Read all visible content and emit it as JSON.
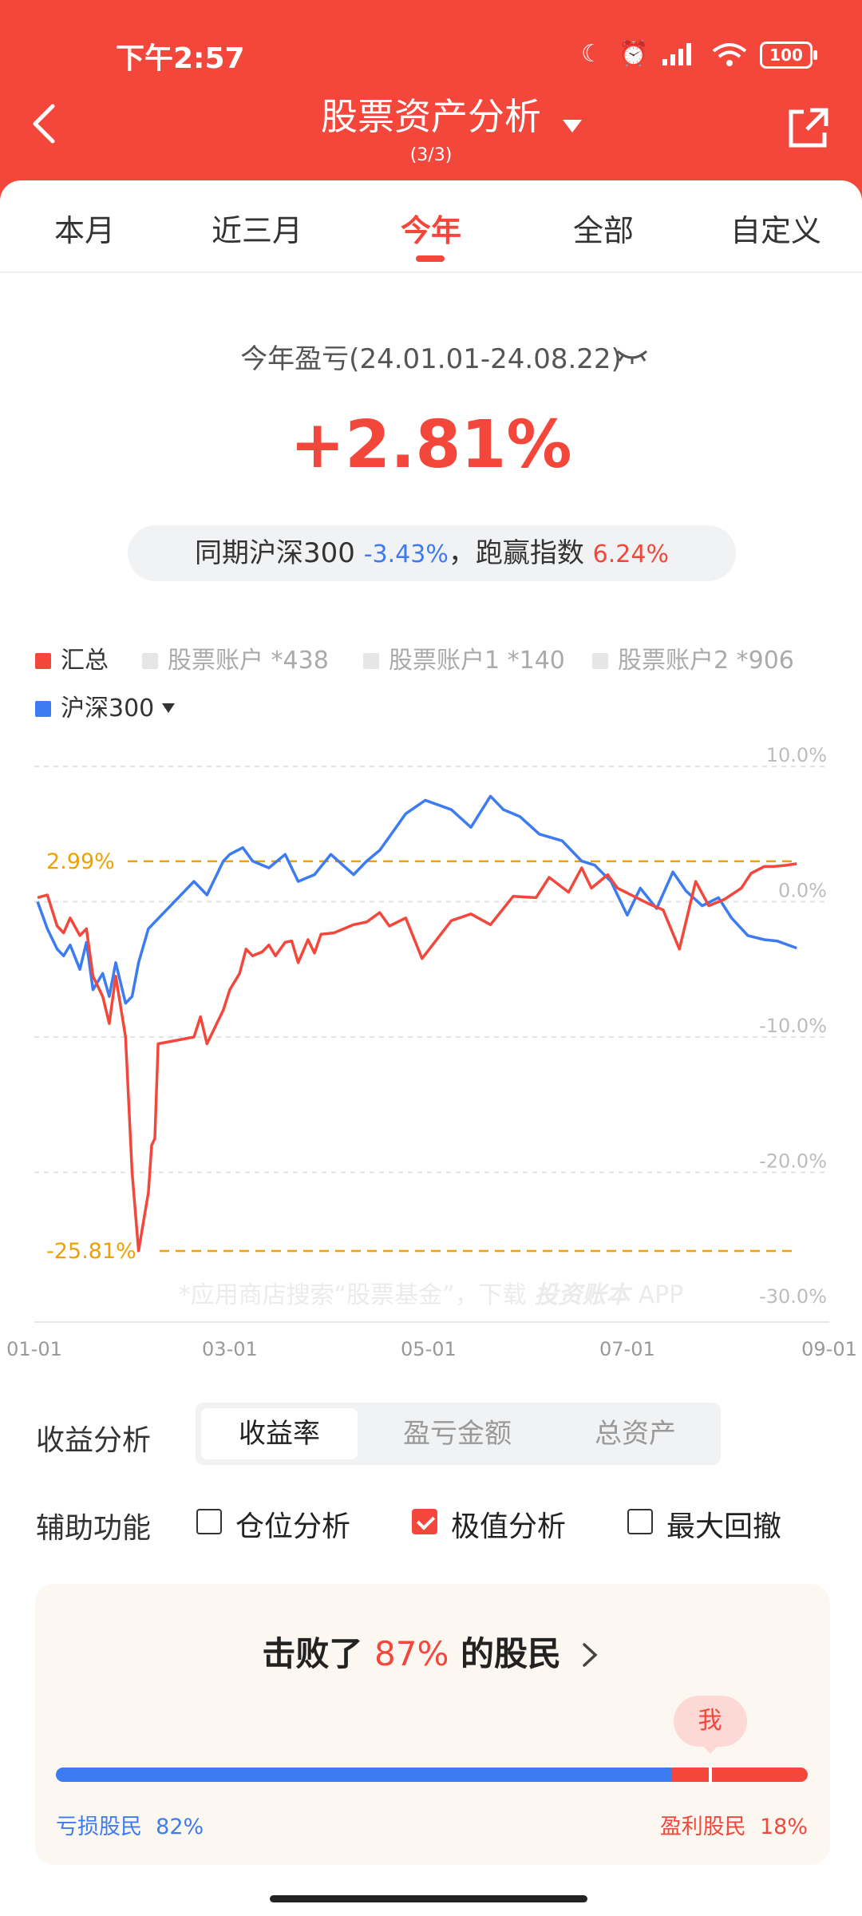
{
  "status_bar": {
    "time": "下午2:57",
    "battery": "100"
  },
  "header": {
    "title": "股票资产分析",
    "subtitle": "(3/3)"
  },
  "tabs": [
    {
      "label": "本月"
    },
    {
      "label": "近三月"
    },
    {
      "label": "今年",
      "active": true
    },
    {
      "label": "全部"
    },
    {
      "label": "自定义"
    }
  ],
  "summary": {
    "label": "今年盈亏(24.01.01-24.08.22)",
    "return_value": "+2.81%",
    "compare_prefix": "同期沪深300",
    "index_return": "-3.43%",
    "compare_mid": "，跑赢指数",
    "excess_return": "6.24%"
  },
  "legend": {
    "items": [
      "汇总",
      "股票账户 *438",
      "股票账户1 *140",
      "股票账户2 *906"
    ],
    "index_label": "沪深300"
  },
  "colors": {
    "accent": "#f4473c",
    "index_blue": "#3d7bf3",
    "marker_orange": "#f0a000"
  },
  "chart_data": {
    "type": "line",
    "x_ticks": [
      "01-01",
      "03-01",
      "05-01",
      "07-01",
      "09-01"
    ],
    "y_ticks": [
      "10.0%",
      "0.0%",
      "-10.0%",
      "-20.0%",
      "-30.0%"
    ],
    "ylim": [
      -30,
      10
    ],
    "max_marker": "2.99%",
    "min_marker": "-25.81%",
    "watermark": "*应用商店搜索“股票基金”，下载",
    "watermark_brand": "投资账本",
    "watermark_suffix": "APP",
    "series": [
      {
        "name": "汇总",
        "color": "#f4473c",
        "x": [
          "2024-01-02",
          "2024-01-05",
          "2024-01-08",
          "2024-01-10",
          "2024-01-12",
          "2024-01-15",
          "2024-01-17",
          "2024-01-19",
          "2024-01-22",
          "2024-01-24",
          "2024-01-26",
          "2024-01-29",
          "2024-01-31",
          "2024-02-02",
          "2024-02-05",
          "2024-02-06",
          "2024-02-07",
          "2024-02-08",
          "2024-02-19",
          "2024-02-21",
          "2024-02-23",
          "2024-02-26",
          "2024-02-28",
          "2024-03-01",
          "2024-03-04",
          "2024-03-06",
          "2024-03-08",
          "2024-03-11",
          "2024-03-13",
          "2024-03-15",
          "2024-03-18",
          "2024-03-20",
          "2024-03-22",
          "2024-03-25",
          "2024-03-27",
          "2024-03-29",
          "2024-04-02",
          "2024-04-08",
          "2024-04-12",
          "2024-04-16",
          "2024-04-19",
          "2024-04-24",
          "2024-04-29",
          "2024-05-08",
          "2024-05-14",
          "2024-05-20",
          "2024-05-27",
          "2024-06-03",
          "2024-06-07",
          "2024-06-13",
          "2024-06-17",
          "2024-06-20",
          "2024-06-25",
          "2024-06-28",
          "2024-07-03",
          "2024-07-08",
          "2024-07-12",
          "2024-07-17",
          "2024-07-22",
          "2024-07-26",
          "2024-07-31",
          "2024-08-05",
          "2024-08-08",
          "2024-08-12",
          "2024-08-15",
          "2024-08-19",
          "2024-08-22"
        ],
        "values": [
          0.3,
          0.5,
          -1.8,
          -2.3,
          -1.2,
          -2.5,
          -2.0,
          -5.5,
          -7.0,
          -9.0,
          -5.5,
          -10.0,
          -20.0,
          -25.8,
          -21.5,
          -18.0,
          -17.5,
          -10.5,
          -10.0,
          -8.5,
          -10.5,
          -9.0,
          -8.0,
          -6.5,
          -5.3,
          -3.5,
          -4.0,
          -3.7,
          -3.2,
          -4.0,
          -3.0,
          -2.9,
          -4.5,
          -2.8,
          -3.8,
          -2.4,
          -2.3,
          -1.7,
          -1.5,
          -0.8,
          -1.8,
          -1.2,
          -4.2,
          -1.4,
          -0.9,
          -1.7,
          0.4,
          0.3,
          1.8,
          0.7,
          2.5,
          1.0,
          2.0,
          1.0,
          0.4,
          -0.2,
          -0.6,
          -3.5,
          1.5,
          -0.3,
          0.2,
          1.0,
          2.1,
          2.6,
          2.6,
          2.7,
          2.81
        ]
      },
      {
        "name": "沪深300",
        "color": "#3d7bf3",
        "x": [
          "2024-01-02",
          "2024-01-05",
          "2024-01-08",
          "2024-01-10",
          "2024-01-12",
          "2024-01-15",
          "2024-01-17",
          "2024-01-19",
          "2024-01-22",
          "2024-01-24",
          "2024-01-26",
          "2024-01-29",
          "2024-01-31",
          "2024-02-02",
          "2024-02-05",
          "2024-02-07",
          "2024-02-19",
          "2024-02-23",
          "2024-02-28",
          "2024-03-01",
          "2024-03-05",
          "2024-03-08",
          "2024-03-13",
          "2024-03-18",
          "2024-03-22",
          "2024-03-27",
          "2024-04-01",
          "2024-04-08",
          "2024-04-12",
          "2024-04-16",
          "2024-04-19",
          "2024-04-24",
          "2024-04-30",
          "2024-05-08",
          "2024-05-14",
          "2024-05-20",
          "2024-05-24",
          "2024-05-29",
          "2024-06-04",
          "2024-06-11",
          "2024-06-17",
          "2024-06-21",
          "2024-06-26",
          "2024-07-01",
          "2024-07-05",
          "2024-07-10",
          "2024-07-15",
          "2024-07-19",
          "2024-07-24",
          "2024-07-29",
          "2024-08-02",
          "2024-08-07",
          "2024-08-12",
          "2024-08-16",
          "2024-08-22"
        ],
        "values": [
          0.0,
          -2.0,
          -3.5,
          -4.0,
          -3.2,
          -5.0,
          -3.0,
          -6.5,
          -5.3,
          -7.0,
          -4.5,
          -7.5,
          -7.0,
          -4.5,
          -2.0,
          -1.5,
          1.5,
          0.5,
          3.0,
          3.5,
          4.0,
          3.0,
          2.5,
          3.5,
          1.5,
          2.0,
          3.5,
          2.0,
          3.0,
          3.8,
          4.8,
          6.5,
          7.5,
          6.8,
          5.5,
          7.8,
          6.8,
          6.3,
          5.0,
          4.5,
          3.0,
          2.7,
          1.5,
          -1.0,
          1.0,
          -0.5,
          2.2,
          0.8,
          -0.3,
          0.3,
          -1.2,
          -2.5,
          -2.8,
          -2.9,
          -3.43
        ]
      }
    ]
  },
  "profit_analysis": {
    "label": "收益分析",
    "options": [
      "收益率",
      "盈亏金额",
      "总资产"
    ],
    "selected": "收益率"
  },
  "aux": {
    "label": "辅助功能",
    "options": [
      {
        "label": "仓位分析",
        "checked": false
      },
      {
        "label": "极值分析",
        "checked": true
      },
      {
        "label": "最大回撤",
        "checked": false
      }
    ]
  },
  "rank": {
    "prefix": "击败了",
    "percent": "87%",
    "suffix": "的股民",
    "me": "我",
    "loss_label": "亏损股民",
    "loss_pct": "82%",
    "gain_label": "盈利股民",
    "gain_pct": "18%",
    "loss_share": 0.82,
    "me_position": 0.87
  }
}
